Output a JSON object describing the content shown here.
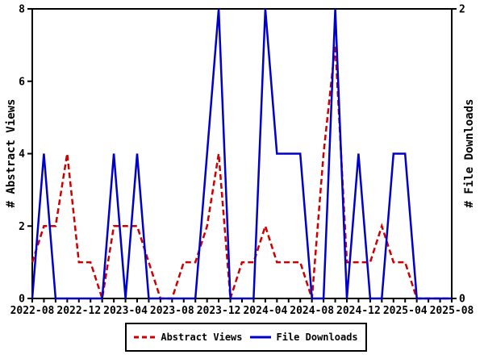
{
  "chart_data": {
    "type": "line",
    "title": "",
    "x": [
      "2022-08",
      "2022-09",
      "2022-10",
      "2022-11",
      "2022-12",
      "2023-01",
      "2023-02",
      "2023-03",
      "2023-04",
      "2023-05",
      "2023-06",
      "2023-07",
      "2023-08",
      "2023-09",
      "2023-10",
      "2023-11",
      "2023-12",
      "2024-01",
      "2024-02",
      "2024-03",
      "2024-04",
      "2024-05",
      "2024-06",
      "2024-07",
      "2024-08",
      "2024-09",
      "2024-10",
      "2024-11",
      "2024-12",
      "2025-01",
      "2025-02",
      "2025-03",
      "2025-04",
      "2025-05",
      "2025-06",
      "2025-07",
      "2025-08"
    ],
    "x_major_tick_labels": [
      "2022-08",
      "2022-12",
      "2023-04",
      "2023-08",
      "2023-12",
      "2024-04",
      "2024-08",
      "2024-12",
      "2025-04",
      "2025-08"
    ],
    "x_major_tick_every": 4,
    "series": [
      {
        "name": "Abstract Views",
        "axis": "left",
        "color": "#CC0000",
        "style": "dashed",
        "values": [
          1,
          2,
          2,
          4,
          1,
          1,
          0,
          2,
          2,
          2,
          1,
          0,
          0,
          1,
          1,
          2,
          4,
          0,
          1,
          1,
          2,
          1,
          1,
          1,
          0,
          4,
          7,
          1,
          1,
          1,
          2,
          1,
          1,
          0,
          0,
          0,
          0
        ]
      },
      {
        "name": "File Downloads",
        "axis": "right",
        "color": "#0000C8",
        "style": "solid",
        "values": [
          0,
          1,
          0,
          0,
          0,
          0,
          0,
          1,
          0,
          1,
          0,
          0,
          0,
          0,
          0,
          1,
          2,
          0,
          0,
          0,
          2,
          1,
          1,
          1,
          0,
          0,
          2,
          0,
          1,
          0,
          0,
          1,
          1,
          0,
          0,
          0,
          0
        ]
      }
    ],
    "left_axis": {
      "label": "# Abstract Views",
      "ticks": [
        0,
        2,
        4,
        6,
        8
      ],
      "range": [
        0,
        8
      ]
    },
    "right_axis": {
      "label": "# File Downloads",
      "ticks": [
        0,
        2
      ],
      "range": [
        0,
        2
      ]
    },
    "legend": {
      "position": "bottom"
    },
    "grid": false,
    "axis_color": "#000000",
    "background": "#FFFFFF"
  }
}
